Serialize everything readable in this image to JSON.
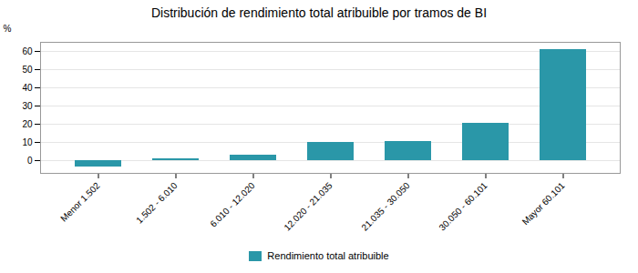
{
  "chart_data": {
    "type": "bar",
    "title": "Distribución de rendimiento total atribuible por tramos de BI",
    "categories": [
      "Menor 1.502",
      "1.502 - 6.010",
      "6.010 - 12.020",
      "12.020 - 21.035",
      "21.035 - 30.050",
      "30.050 - 60.101",
      "Mayor 60.101"
    ],
    "series": [
      {
        "name": "Rendimiento total atribuible",
        "color": "#2a97a8",
        "values": [
          -3.5,
          1.0,
          3.0,
          10.0,
          10.5,
          20.5,
          61.0
        ]
      }
    ],
    "ylabel": "%",
    "ylim": [
      -7,
      65
    ],
    "yticks": [
      0,
      10,
      20,
      30,
      40,
      50,
      60
    ],
    "grid": true,
    "legend": "bottom"
  }
}
